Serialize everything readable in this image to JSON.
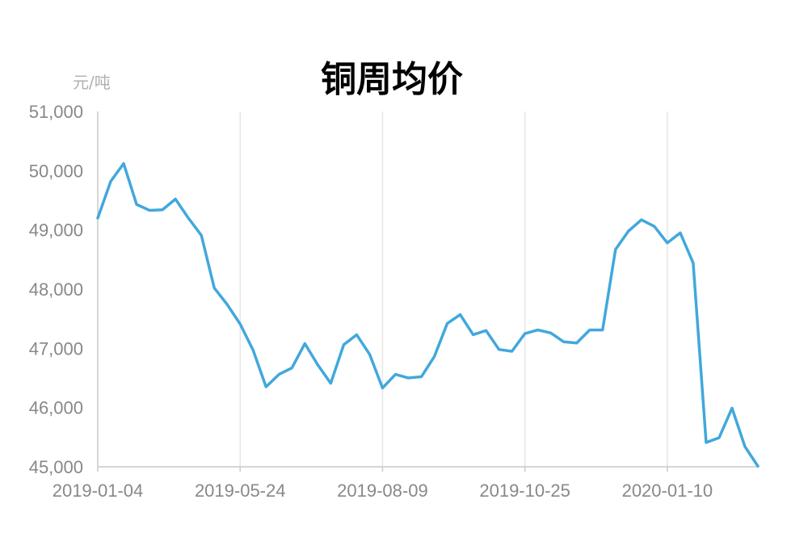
{
  "title": "铜周均价",
  "unit": "元/吨",
  "colors": {
    "line": "#41A8DC",
    "grid": "#E6E6E6",
    "axis": "#C8C8C8",
    "tick_text": "#888888"
  },
  "chart_data": {
    "type": "line",
    "title": "铜周均价",
    "ylabel": "元/吨",
    "xlabel": "",
    "ylim": [
      45000,
      51000
    ],
    "yticks": [
      45000,
      46000,
      47000,
      48000,
      49000,
      50000,
      51000
    ],
    "ytick_labels": [
      "45,000",
      "46,000",
      "47,000",
      "48,000",
      "49,000",
      "50,000",
      "51,000"
    ],
    "xtick_labels": [
      "2019-01-04",
      "2019-05-24",
      "2019-08-09",
      "2019-10-25",
      "2020-01-10"
    ],
    "xtick_index": [
      0,
      11,
      22,
      33,
      44
    ],
    "grid": "vertical",
    "legend": "none",
    "series": [
      {
        "values": [
          49200,
          49820,
          50120,
          49430,
          49330,
          49340,
          49520,
          49200,
          48910,
          48020,
          47740,
          47410,
          46970,
          46350,
          46560,
          46670,
          47080,
          46720,
          46410,
          47060,
          47230,
          46900,
          46330,
          46560,
          46500,
          46520,
          46860,
          47420,
          47570,
          47230,
          47300,
          46980,
          46950,
          47250,
          47310,
          47260,
          47110,
          47090,
          47310,
          47310,
          48670,
          48980,
          49170,
          49060,
          48780,
          48950,
          48440,
          45410,
          45490,
          45990,
          45340,
          45010
        ]
      }
    ]
  }
}
